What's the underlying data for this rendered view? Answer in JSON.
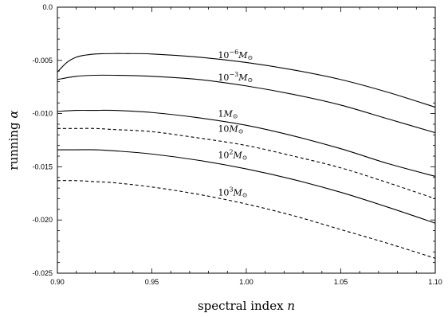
{
  "chart_data": {
    "type": "line",
    "title": "",
    "xlabel": "spectral index ",
    "xlabel_var": "n",
    "ylabel": "running ",
    "ylabel_var": "α",
    "xlim": [
      0.9,
      1.1
    ],
    "ylim": [
      -0.025,
      0.0
    ],
    "x_ticks": [
      0.9,
      0.95,
      1.0,
      1.05,
      1.1
    ],
    "x_tick_labels": [
      "0.90",
      "0.95",
      "1.00",
      "1.05",
      "1.10"
    ],
    "y_ticks": [
      0.0,
      -0.005,
      -0.01,
      -0.015,
      -0.02,
      -0.025
    ],
    "y_tick_labels": [
      "0.0",
      "-0.005",
      "-0.010",
      "-0.015",
      "-0.020",
      "-0.025"
    ],
    "grid": false,
    "legend": "none",
    "series": [
      {
        "base": "10",
        "exp": "−6",
        "unit": "M",
        "sub": "⊙",
        "style": "solid",
        "label_x": 0.985,
        "label_y": -0.0048,
        "x": [
          0.9,
          0.905,
          0.91,
          0.915,
          0.92,
          0.925,
          0.93,
          0.935,
          0.95,
          0.975,
          1.0,
          1.025,
          1.05,
          1.075,
          1.1
        ],
        "y": [
          -0.0061,
          -0.0052,
          -0.0047,
          -0.0045,
          -0.0044,
          -0.00437,
          -0.00436,
          -0.00436,
          -0.0044,
          -0.0047,
          -0.0052,
          -0.0059,
          -0.0068,
          -0.008,
          -0.0094
        ]
      },
      {
        "base": "10",
        "exp": "−3",
        "unit": "M",
        "sub": "⊙",
        "style": "solid",
        "label_x": 0.985,
        "label_y": -0.0069,
        "x": [
          0.9,
          0.91,
          0.92,
          0.93,
          0.95,
          0.975,
          1.0,
          1.025,
          1.05,
          1.075,
          1.1
        ],
        "y": [
          -0.0068,
          -0.0065,
          -0.0064,
          -0.0064,
          -0.0065,
          -0.0068,
          -0.0074,
          -0.0082,
          -0.0092,
          -0.0105,
          -0.0118
        ]
      },
      {
        "base": "",
        "exp": "",
        "unit": "1M",
        "sub": "⊙",
        "style": "solid",
        "label_x": 0.985,
        "label_y": -0.0103,
        "x": [
          0.9,
          0.91,
          0.92,
          0.93,
          0.95,
          0.975,
          1.0,
          1.025,
          1.05,
          1.075,
          1.1
        ],
        "y": [
          -0.0098,
          -0.0097,
          -0.0097,
          -0.0097,
          -0.0099,
          -0.0104,
          -0.0111,
          -0.0121,
          -0.0133,
          -0.0147,
          -0.0159
        ]
      },
      {
        "base": "",
        "exp": "",
        "unit": "10M",
        "sub": "⊙",
        "style": "dashed",
        "label_x": 0.985,
        "label_y": -0.0117,
        "x": [
          0.9,
          0.91,
          0.92,
          0.93,
          0.95,
          0.975,
          1.0,
          1.025,
          1.05,
          1.075,
          1.1
        ],
        "y": [
          -0.0114,
          -0.0114,
          -0.0114,
          -0.0115,
          -0.0117,
          -0.0123,
          -0.013,
          -0.014,
          -0.0151,
          -0.0165,
          -0.018
        ]
      },
      {
        "base": "10",
        "exp": "2",
        "unit": "M",
        "sub": "⊙",
        "style": "solid",
        "label_x": 0.985,
        "label_y": -0.0142,
        "x": [
          0.9,
          0.91,
          0.92,
          0.93,
          0.95,
          0.975,
          1.0,
          1.025,
          1.05,
          1.075,
          1.1
        ],
        "y": [
          -0.0134,
          -0.0134,
          -0.0134,
          -0.0135,
          -0.0138,
          -0.0144,
          -0.0152,
          -0.0162,
          -0.0174,
          -0.0188,
          -0.0203
        ]
      },
      {
        "base": "10",
        "exp": "3",
        "unit": "M",
        "sub": "⊙",
        "style": "dashed",
        "label_x": 0.985,
        "label_y": -0.0177,
        "x": [
          0.9,
          0.91,
          0.92,
          0.93,
          0.95,
          0.975,
          1.0,
          1.025,
          1.05,
          1.075,
          1.1
        ],
        "y": [
          -0.0163,
          -0.0163,
          -0.0164,
          -0.0165,
          -0.0169,
          -0.0176,
          -0.0185,
          -0.0196,
          -0.0209,
          -0.0222,
          -0.0236
        ]
      }
    ]
  }
}
